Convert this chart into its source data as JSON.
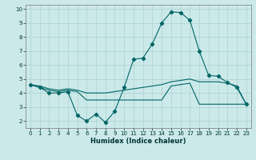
{
  "xlabel": "Humidex (Indice chaleur)",
  "xlim": [
    -0.5,
    23.5
  ],
  "ylim": [
    1.5,
    10.3
  ],
  "xticks": [
    0,
    1,
    2,
    3,
    4,
    5,
    6,
    7,
    8,
    9,
    10,
    11,
    12,
    13,
    14,
    15,
    16,
    17,
    18,
    19,
    20,
    21,
    22,
    23
  ],
  "yticks": [
    2,
    3,
    4,
    5,
    6,
    7,
    8,
    9,
    10
  ],
  "background_color": "#cce9e9",
  "grid_color": "#aad0d0",
  "line_color": "#006666",
  "line1_x": [
    0,
    1,
    2,
    3,
    4,
    5,
    6,
    7,
    8,
    9,
    10,
    11,
    12,
    13,
    14,
    15,
    16,
    17,
    18,
    19,
    20,
    21,
    22,
    23
  ],
  "line1_y": [
    4.6,
    4.4,
    4.0,
    4.0,
    4.1,
    2.4,
    2.0,
    2.5,
    1.9,
    2.7,
    4.4,
    6.4,
    6.5,
    7.5,
    9.0,
    9.8,
    9.75,
    9.2,
    7.0,
    5.25,
    5.2,
    4.75,
    4.4,
    3.2
  ],
  "line2_x": [
    0,
    1,
    2,
    3,
    4,
    5,
    6,
    7,
    8,
    9,
    10,
    11,
    12,
    13,
    14,
    15,
    16,
    17,
    18,
    19,
    20,
    21,
    22,
    23
  ],
  "line2_y": [
    4.6,
    4.4,
    4.2,
    4.1,
    4.2,
    4.1,
    3.5,
    3.5,
    3.5,
    3.5,
    3.5,
    3.5,
    3.5,
    3.5,
    3.5,
    4.5,
    4.6,
    4.7,
    3.2,
    3.2,
    3.2,
    3.2,
    3.2,
    3.2
  ],
  "line3_x": [
    0,
    1,
    2,
    3,
    4,
    5,
    6,
    7,
    8,
    9,
    10,
    11,
    12,
    13,
    14,
    15,
    16,
    17,
    18,
    19,
    20,
    21,
    22,
    23
  ],
  "line3_y": [
    4.6,
    4.5,
    4.3,
    4.2,
    4.3,
    4.2,
    4.0,
    4.0,
    4.0,
    4.1,
    4.2,
    4.3,
    4.4,
    4.5,
    4.6,
    4.8,
    4.9,
    5.0,
    4.8,
    4.8,
    4.8,
    4.7,
    4.5,
    3.2
  ],
  "tick_fontsize": 5.0,
  "xlabel_fontsize": 6.0
}
